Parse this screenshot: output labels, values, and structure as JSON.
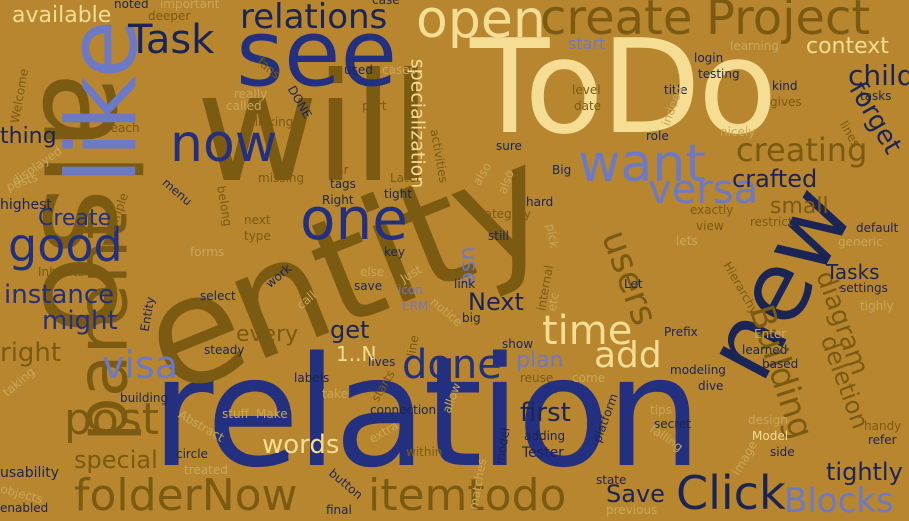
{
  "background_color": "#b8862f",
  "palette": {
    "brown": "#7b5a12",
    "navy": "#23307f",
    "blue": "#6b79c6",
    "cream": "#f6dd94",
    "tan": "#c9a85a",
    "dark": "#1a2455"
  },
  "words": [
    {
      "text": "relation",
      "c": "navy"
    },
    {
      "text": "entity",
      "c": "brown"
    },
    {
      "text": "will",
      "c": "brown"
    },
    {
      "text": "also",
      "c": "brown"
    },
    {
      "text": "ToDo",
      "c": "cream"
    },
    {
      "text": "see",
      "c": "navy"
    },
    {
      "text": "like",
      "c": "blue"
    },
    {
      "text": "parent",
      "c": "brown"
    },
    {
      "text": "new",
      "c": "dark"
    },
    {
      "text": "Task",
      "c": "dark"
    },
    {
      "text": "relations",
      "c": "dark"
    },
    {
      "text": "open",
      "c": "cream"
    },
    {
      "text": "create",
      "c": "brown"
    },
    {
      "text": "Project",
      "c": "brown"
    },
    {
      "text": "one",
      "c": "navy"
    },
    {
      "text": "now",
      "c": "navy"
    },
    {
      "text": "want",
      "c": "blue"
    },
    {
      "text": "good",
      "c": "navy"
    },
    {
      "text": "available",
      "c": "cream"
    },
    {
      "text": "context",
      "c": "cream"
    },
    {
      "text": "child",
      "c": "dark"
    },
    {
      "text": "creating",
      "c": "brown"
    },
    {
      "text": "versa",
      "c": "blue"
    },
    {
      "text": "crafted",
      "c": "dark"
    },
    {
      "text": "forget",
      "c": "dark"
    },
    {
      "text": "specialization",
      "c": "cream"
    },
    {
      "text": "Click",
      "c": "dark"
    },
    {
      "text": "folderNow",
      "c": "brown"
    },
    {
      "text": "itemtodo",
      "c": "brown"
    },
    {
      "text": "Blocks",
      "c": "blue"
    },
    {
      "text": "post",
      "c": "brown"
    },
    {
      "text": "words",
      "c": "cream"
    },
    {
      "text": "done",
      "c": "navy"
    },
    {
      "text": "add",
      "c": "cream"
    },
    {
      "text": "time",
      "c": "cream"
    },
    {
      "text": "visa",
      "c": "blue"
    },
    {
      "text": "users",
      "c": "brown"
    },
    {
      "text": "Building",
      "c": "brown"
    },
    {
      "text": "diagram",
      "c": "brown"
    },
    {
      "text": "deletion",
      "c": "brown"
    },
    {
      "text": "Tasks",
      "c": "dark"
    },
    {
      "text": "small",
      "c": "brown"
    },
    {
      "text": "instance",
      "c": "navy"
    },
    {
      "text": "Create",
      "c": "navy"
    },
    {
      "text": "thing",
      "c": "dark"
    },
    {
      "text": "might",
      "c": "navy"
    },
    {
      "text": "right",
      "c": "brown"
    },
    {
      "text": "special",
      "c": "brown"
    },
    {
      "text": "tightly",
      "c": "dark"
    },
    {
      "text": "Save",
      "c": "dark"
    },
    {
      "text": "first",
      "c": "dark"
    },
    {
      "text": "every",
      "c": "brown"
    },
    {
      "text": "get",
      "c": "dark"
    },
    {
      "text": "Next",
      "c": "dark"
    },
    {
      "text": "use",
      "c": "blue"
    },
    {
      "text": "plan",
      "c": "blue"
    },
    {
      "text": "1..N",
      "c": "cream"
    },
    {
      "text": "start",
      "c": "blue"
    },
    {
      "text": "login",
      "c": "dark"
    },
    {
      "text": "testing",
      "c": "dark"
    },
    {
      "text": "title",
      "c": "dark"
    },
    {
      "text": "level",
      "c": "brown"
    },
    {
      "text": "date",
      "c": "brown"
    },
    {
      "text": "kind",
      "c": "dark"
    },
    {
      "text": "gives",
      "c": "brown"
    },
    {
      "text": "tasks",
      "c": "dark"
    },
    {
      "text": "nicely",
      "c": "tan"
    },
    {
      "text": "role",
      "c": "dark"
    },
    {
      "text": "Big",
      "c": "dark"
    },
    {
      "text": "sure",
      "c": "dark"
    },
    {
      "text": "hard",
      "c": "dark"
    },
    {
      "text": "exactly",
      "c": "brown"
    },
    {
      "text": "view",
      "c": "brown"
    },
    {
      "text": "lets",
      "c": "tan"
    },
    {
      "text": "restrict",
      "c": "brown"
    },
    {
      "text": "default",
      "c": "dark"
    },
    {
      "text": "generic",
      "c": "tan"
    },
    {
      "text": "settings",
      "c": "dark"
    },
    {
      "text": "tighly",
      "c": "tan"
    },
    {
      "text": "Let",
      "c": "dark"
    },
    {
      "text": "Prefix",
      "c": "dark"
    },
    {
      "text": "Enter",
      "c": "tan"
    },
    {
      "text": "learned",
      "c": "dark"
    },
    {
      "text": "based",
      "c": "dark"
    },
    {
      "text": "modeling",
      "c": "dark"
    },
    {
      "text": "dive",
      "c": "dark"
    },
    {
      "text": "Hierarchy",
      "c": "brown"
    },
    {
      "text": "tips",
      "c": "tan"
    },
    {
      "text": "secret",
      "c": "dark"
    },
    {
      "text": "Model",
      "c": "cream"
    },
    {
      "text": "refer",
      "c": "dark"
    },
    {
      "text": "handy",
      "c": "brown"
    },
    {
      "text": "side",
      "c": "dark"
    },
    {
      "text": "image",
      "c": "tan"
    },
    {
      "text": "design",
      "c": "tan"
    },
    {
      "text": "falling",
      "c": "tan"
    },
    {
      "text": "platform",
      "c": "dark"
    },
    {
      "text": "Tester",
      "c": "dark"
    },
    {
      "text": "adding",
      "c": "dark"
    },
    {
      "text": "state",
      "c": "dark"
    },
    {
      "text": "previous",
      "c": "tan"
    },
    {
      "text": "matches",
      "c": "tan"
    },
    {
      "text": "model",
      "c": "dark"
    },
    {
      "text": "within",
      "c": "brown"
    },
    {
      "text": "extra",
      "c": "tan"
    },
    {
      "text": "connection",
      "c": "dark"
    },
    {
      "text": "reuse",
      "c": "brown"
    },
    {
      "text": "show",
      "c": "dark"
    },
    {
      "text": "come",
      "c": "tan"
    },
    {
      "text": "take",
      "c": "tan"
    },
    {
      "text": "allow",
      "c": "tan"
    },
    {
      "text": "starts",
      "c": "brown"
    },
    {
      "text": "lives",
      "c": "dark"
    },
    {
      "text": "line",
      "c": "brown"
    },
    {
      "text": "labels",
      "c": "dark"
    },
    {
      "text": "building",
      "c": "dark"
    },
    {
      "text": "stuff",
      "c": "tan"
    },
    {
      "text": "Make",
      "c": "tan"
    },
    {
      "text": "Abstract",
      "c": "tan"
    },
    {
      "text": "circle",
      "c": "dark"
    },
    {
      "text": "treated",
      "c": "tan"
    },
    {
      "text": "button",
      "c": "dark"
    },
    {
      "text": "final",
      "c": "dark"
    },
    {
      "text": "usability",
      "c": "dark"
    },
    {
      "text": "objects",
      "c": "tan"
    },
    {
      "text": "enabled",
      "c": "dark"
    },
    {
      "text": "steady",
      "c": "dark"
    },
    {
      "text": "taking",
      "c": "tan"
    },
    {
      "text": "select",
      "c": "dark"
    },
    {
      "text": "Entity",
      "c": "dark"
    },
    {
      "text": "work",
      "c": "dark"
    },
    {
      "text": "call",
      "c": "tan"
    },
    {
      "text": "save",
      "c": "dark"
    },
    {
      "text": "else",
      "c": "tan"
    },
    {
      "text": "ERM",
      "c": "blue"
    },
    {
      "text": "icon",
      "c": "blue"
    },
    {
      "text": "link",
      "c": "dark"
    },
    {
      "text": "big",
      "c": "dark"
    },
    {
      "text": "key",
      "c": "dark"
    },
    {
      "text": "internal",
      "c": "brown"
    },
    {
      "text": "etc",
      "c": "tan"
    },
    {
      "text": "still",
      "c": "dark"
    },
    {
      "text": "pick",
      "c": "tan"
    },
    {
      "text": "category",
      "c": "brown"
    },
    {
      "text": "next",
      "c": "brown"
    },
    {
      "text": "type",
      "c": "brown"
    },
    {
      "text": "forms",
      "c": "tan"
    },
    {
      "text": "belong",
      "c": "brown"
    },
    {
      "text": "menu",
      "c": "dark"
    },
    {
      "text": "simple",
      "c": "brown"
    },
    {
      "text": "Inheritance",
      "c": "brown"
    },
    {
      "text": "highest",
      "c": "dark"
    },
    {
      "text": "posts",
      "c": "tan"
    },
    {
      "text": "displayed",
      "c": "tan"
    },
    {
      "text": "reach",
      "c": "brown"
    },
    {
      "text": "Welcome",
      "c": "brown"
    },
    {
      "text": "fans",
      "c": "brown"
    },
    {
      "text": "really",
      "c": "tan"
    },
    {
      "text": "called",
      "c": "tan"
    },
    {
      "text": "clicking",
      "c": "brown"
    },
    {
      "text": "DONE",
      "c": "dark"
    },
    {
      "text": "part",
      "c": "brown"
    },
    {
      "text": "used",
      "c": "dark"
    },
    {
      "text": "cases",
      "c": "tan"
    },
    {
      "text": "missing",
      "c": "brown"
    },
    {
      "text": "far",
      "c": "brown"
    },
    {
      "text": "tags",
      "c": "dark"
    },
    {
      "text": "Right",
      "c": "dark"
    },
    {
      "text": "Later",
      "c": "brown"
    },
    {
      "text": "tight",
      "c": "dark"
    },
    {
      "text": "activities",
      "c": "brown"
    },
    {
      "text": "also2",
      "c": "tan"
    },
    {
      "text": "noted",
      "c": "dark"
    },
    {
      "text": "important",
      "c": "tan"
    },
    {
      "text": "deeper",
      "c": "brown"
    },
    {
      "text": "learning",
      "c": "tan"
    },
    {
      "text": "lines",
      "c": "brown"
    },
    {
      "text": "case",
      "c": "dark"
    },
    {
      "text": "indeed",
      "c": "tan"
    },
    {
      "text": "Just",
      "c": "tan"
    },
    {
      "text": "also3",
      "c": "tan"
    },
    {
      "text": "notice",
      "c": "tan"
    }
  ]
}
